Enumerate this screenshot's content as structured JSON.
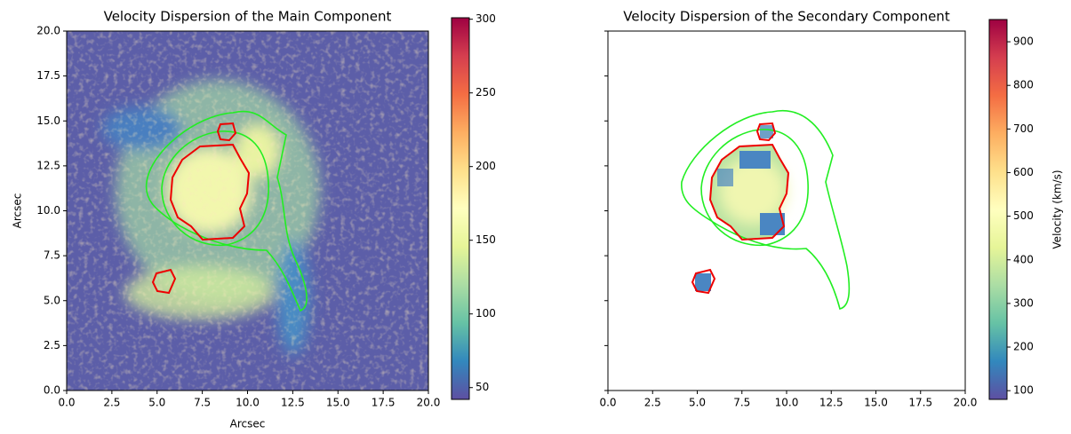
{
  "chart_data": [
    {
      "type": "image",
      "title": "Velocity Dispersion of the Main Component",
      "xlabel": "Arcsec",
      "ylabel": "Arcsec",
      "xlim": [
        0,
        20
      ],
      "ylim": [
        0,
        20
      ],
      "xticks": [
        {
          "value": 0,
          "label": "0.0"
        },
        {
          "value": 2.5,
          "label": "2.5"
        },
        {
          "value": 5,
          "label": "5.0"
        },
        {
          "value": 7.5,
          "label": "7.5"
        },
        {
          "value": 10,
          "label": "10.0"
        },
        {
          "value": 12.5,
          "label": "12.5"
        },
        {
          "value": 15,
          "label": "15.0"
        },
        {
          "value": 17.5,
          "label": "17.5"
        },
        {
          "value": 20,
          "label": "20.0"
        }
      ],
      "yticks": [
        {
          "value": 0,
          "label": "0.0"
        },
        {
          "value": 2.5,
          "label": "2.5"
        },
        {
          "value": 5,
          "label": "5.0"
        },
        {
          "value": 7.5,
          "label": "7.5"
        },
        {
          "value": 10,
          "label": "10.0"
        },
        {
          "value": 12.5,
          "label": "12.5"
        },
        {
          "value": 15,
          "label": "15.0"
        },
        {
          "value": 17.5,
          "label": "17.5"
        },
        {
          "value": 20,
          "label": "20.0"
        }
      ],
      "show_ytick_labels": true,
      "colormap": [
        "#5e4fa2",
        "#3288bd",
        "#66c2a5",
        "#abdda4",
        "#e6f598",
        "#ffffbf",
        "#fee08b",
        "#fdae61",
        "#f46d43",
        "#d53e4f",
        "#9e0142"
      ],
      "colorbar": {
        "clim": [
          42,
          301
        ],
        "ticks": [
          50,
          100,
          150,
          200,
          250,
          300
        ]
      }
    },
    {
      "type": "image",
      "title": "Velocity Dispersion of the Secondary Component",
      "xlim": [
        0,
        20
      ],
      "ylim": [
        0,
        20
      ],
      "xticks": [
        {
          "value": 0,
          "label": "0.0"
        },
        {
          "value": 2.5,
          "label": "2.5"
        },
        {
          "value": 5,
          "label": "5.0"
        },
        {
          "value": 7.5,
          "label": "7.5"
        },
        {
          "value": 10,
          "label": "10.0"
        },
        {
          "value": 12.5,
          "label": "12.5"
        },
        {
          "value": 15,
          "label": "15.0"
        },
        {
          "value": 17.5,
          "label": "17.5"
        },
        {
          "value": 20,
          "label": "20.0"
        }
      ],
      "yticks": [
        {
          "value": 0,
          "label": "0.0"
        },
        {
          "value": 2.5,
          "label": "2.5"
        },
        {
          "value": 5,
          "label": "5.0"
        },
        {
          "value": 7.5,
          "label": "7.5"
        },
        {
          "value": 10,
          "label": "10.0"
        },
        {
          "value": 12.5,
          "label": "12.5"
        },
        {
          "value": 15,
          "label": "15.0"
        },
        {
          "value": 17.5,
          "label": "17.5"
        },
        {
          "value": 20,
          "label": "20.0"
        }
      ],
      "show_ytick_labels": false,
      "colormap": [
        "#5e4fa2",
        "#3288bd",
        "#66c2a5",
        "#abdda4",
        "#e6f598",
        "#ffffbf",
        "#fee08b",
        "#fdae61",
        "#f46d43",
        "#d53e4f",
        "#9e0142"
      ],
      "colorbar": {
        "clim": [
          80,
          951
        ],
        "ticks": [
          100,
          200,
          300,
          400,
          500,
          600,
          700,
          800,
          900
        ],
        "label": "Velocity (km/s)"
      }
    }
  ]
}
